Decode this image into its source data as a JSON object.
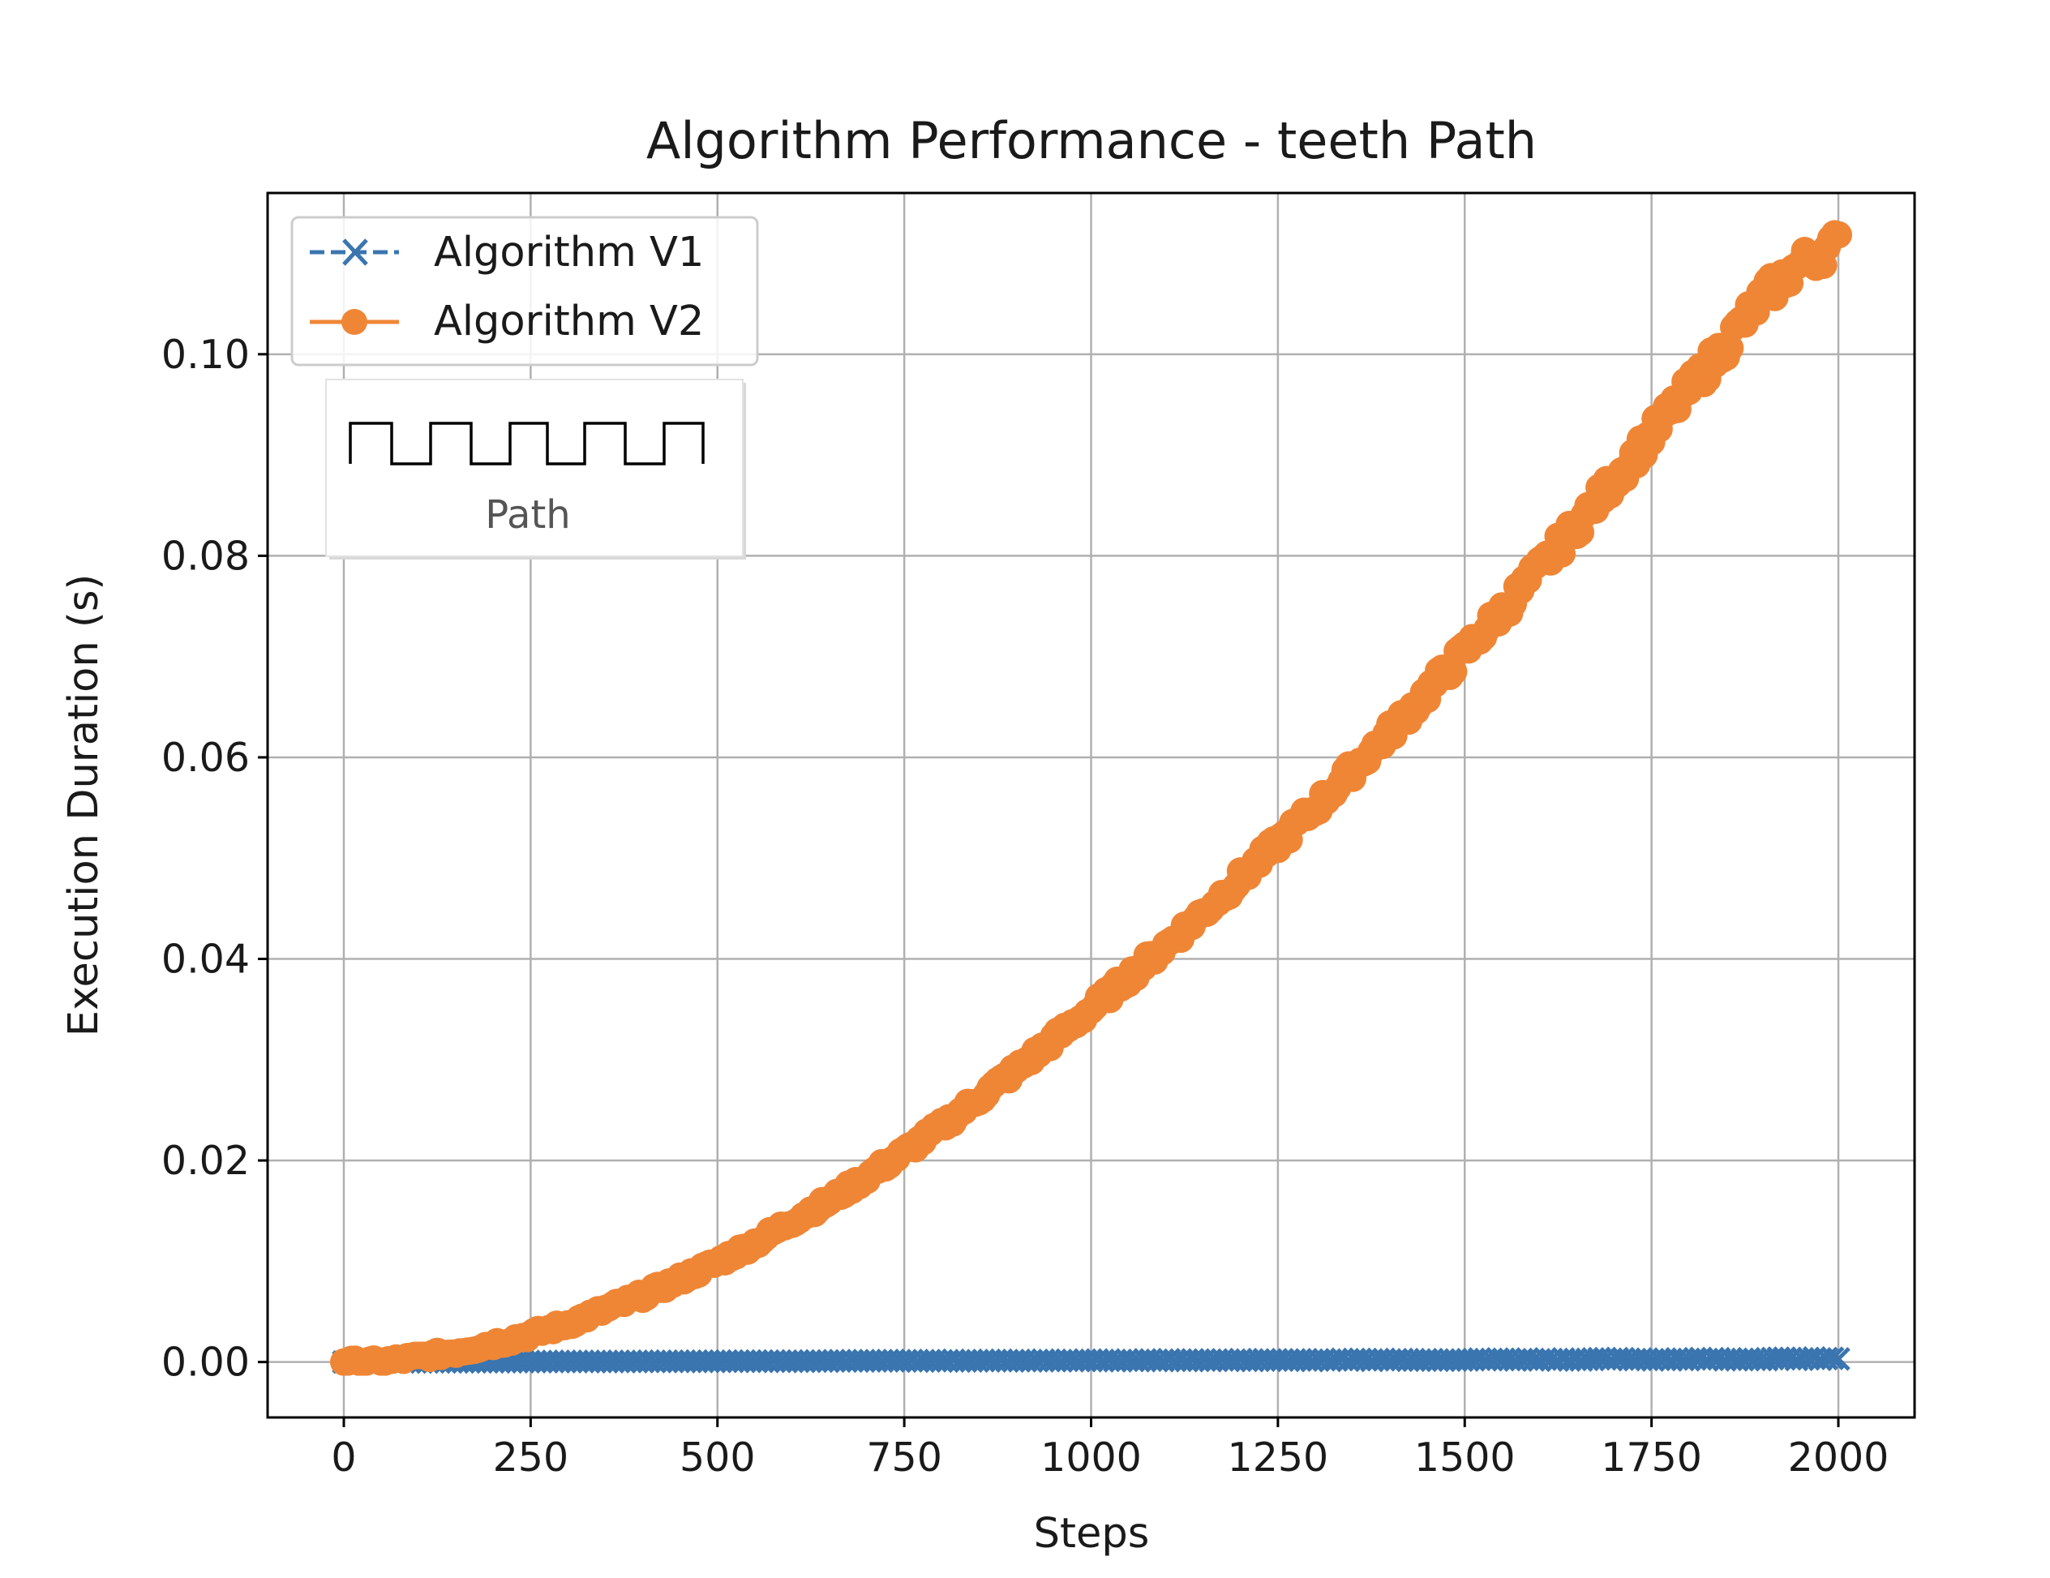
{
  "chart_data": {
    "type": "line",
    "title": "Algorithm Performance - teeth Path",
    "xlabel": "Steps",
    "ylabel": "Execution Duration (s)",
    "xlim": [
      -102,
      2102
    ],
    "ylim": [
      -0.0055,
      0.116
    ],
    "x_ticks": [
      0,
      250,
      500,
      750,
      1000,
      1250,
      1500,
      1750,
      2000
    ],
    "x_tick_labels": [
      "0",
      "250",
      "500",
      "750",
      "1000",
      "1250",
      "1500",
      "1750",
      "2000"
    ],
    "y_ticks": [
      0.0,
      0.02,
      0.04,
      0.06,
      0.08,
      0.1
    ],
    "y_tick_labels": [
      "0.00",
      "0.02",
      "0.04",
      "0.06",
      "0.08",
      "0.10"
    ],
    "grid": true,
    "legend_position": "upper-left",
    "inset": {
      "label": "Path",
      "shape": "teeth"
    },
    "series": [
      {
        "name": "Algorithm V1",
        "color": "#3a75b0",
        "line_style": "dashed",
        "marker": "x",
        "x_range": [
          0,
          2000
        ],
        "y_range": [
          0.0,
          0.0004
        ]
      },
      {
        "name": "Algorithm V2",
        "color": "#ef8636",
        "line_style": "solid",
        "marker": "circle",
        "x": [
          0,
          50,
          100,
          150,
          200,
          250,
          300,
          350,
          400,
          450,
          500,
          550,
          600,
          650,
          700,
          750,
          800,
          850,
          900,
          950,
          1000,
          1050,
          1100,
          1150,
          1200,
          1250,
          1300,
          1350,
          1400,
          1450,
          1500,
          1550,
          1600,
          1650,
          1700,
          1750,
          1800,
          1850,
          1900,
          1950,
          2000
        ],
        "y": [
          0.0,
          0.0,
          0.0005,
          0.001,
          0.0018,
          0.0027,
          0.0038,
          0.0052,
          0.0066,
          0.0082,
          0.0099,
          0.0118,
          0.014,
          0.016,
          0.0184,
          0.0208,
          0.0234,
          0.0262,
          0.029,
          0.032,
          0.035,
          0.0382,
          0.0413,
          0.0446,
          0.048,
          0.0515,
          0.055,
          0.0588,
          0.0625,
          0.0665,
          0.0705,
          0.0745,
          0.0787,
          0.083,
          0.0875,
          0.092,
          0.0965,
          0.101,
          0.1058,
          0.109,
          0.111
        ]
      }
    ]
  }
}
